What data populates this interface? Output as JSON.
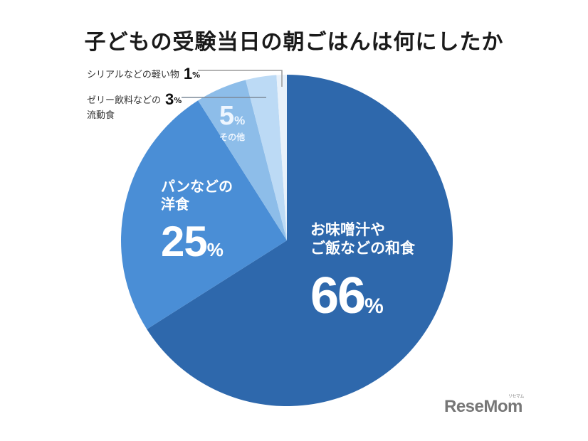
{
  "title": "子どもの受験当日の朝ごはんは何にしたか",
  "chart_data": {
    "type": "pie",
    "title": "子どもの受験当日の朝ごはんは何にしたか",
    "start_angle": "12 o'clock",
    "direction": "clockwise",
    "categories": [
      "お味噌汁やご飯などの和食",
      "パンなどの洋食",
      "その他",
      "ゼリー飲料などの流動食",
      "シリアルなどの軽い物"
    ],
    "values": [
      66,
      25,
      5,
      3,
      1
    ],
    "unit": "%",
    "colors": [
      "#2e68ac",
      "#4a8ed6",
      "#8dbde9",
      "#bcdaf5",
      "#e8f1fa"
    ],
    "legend": "none (labels placed on/near slices)"
  },
  "labels": {
    "washoku": {
      "line1": "お味噌汁や",
      "line2": "ご飯などの和食",
      "value": "66",
      "unit": "%"
    },
    "yoshoku": {
      "line1": "パンなどの",
      "line2": "洋食",
      "value": "25",
      "unit": "%"
    },
    "other": {
      "value": "5",
      "unit": "%",
      "name": "その他"
    },
    "jelly": {
      "line1": "ゼリー飲料などの",
      "line2": "流動食",
      "value": "3",
      "unit": "%"
    },
    "cereal": {
      "name": "シリアルなどの軽い物",
      "value": "1",
      "unit": "%"
    }
  },
  "logo": {
    "text": "ReseMom",
    "sub": "リセマム"
  }
}
